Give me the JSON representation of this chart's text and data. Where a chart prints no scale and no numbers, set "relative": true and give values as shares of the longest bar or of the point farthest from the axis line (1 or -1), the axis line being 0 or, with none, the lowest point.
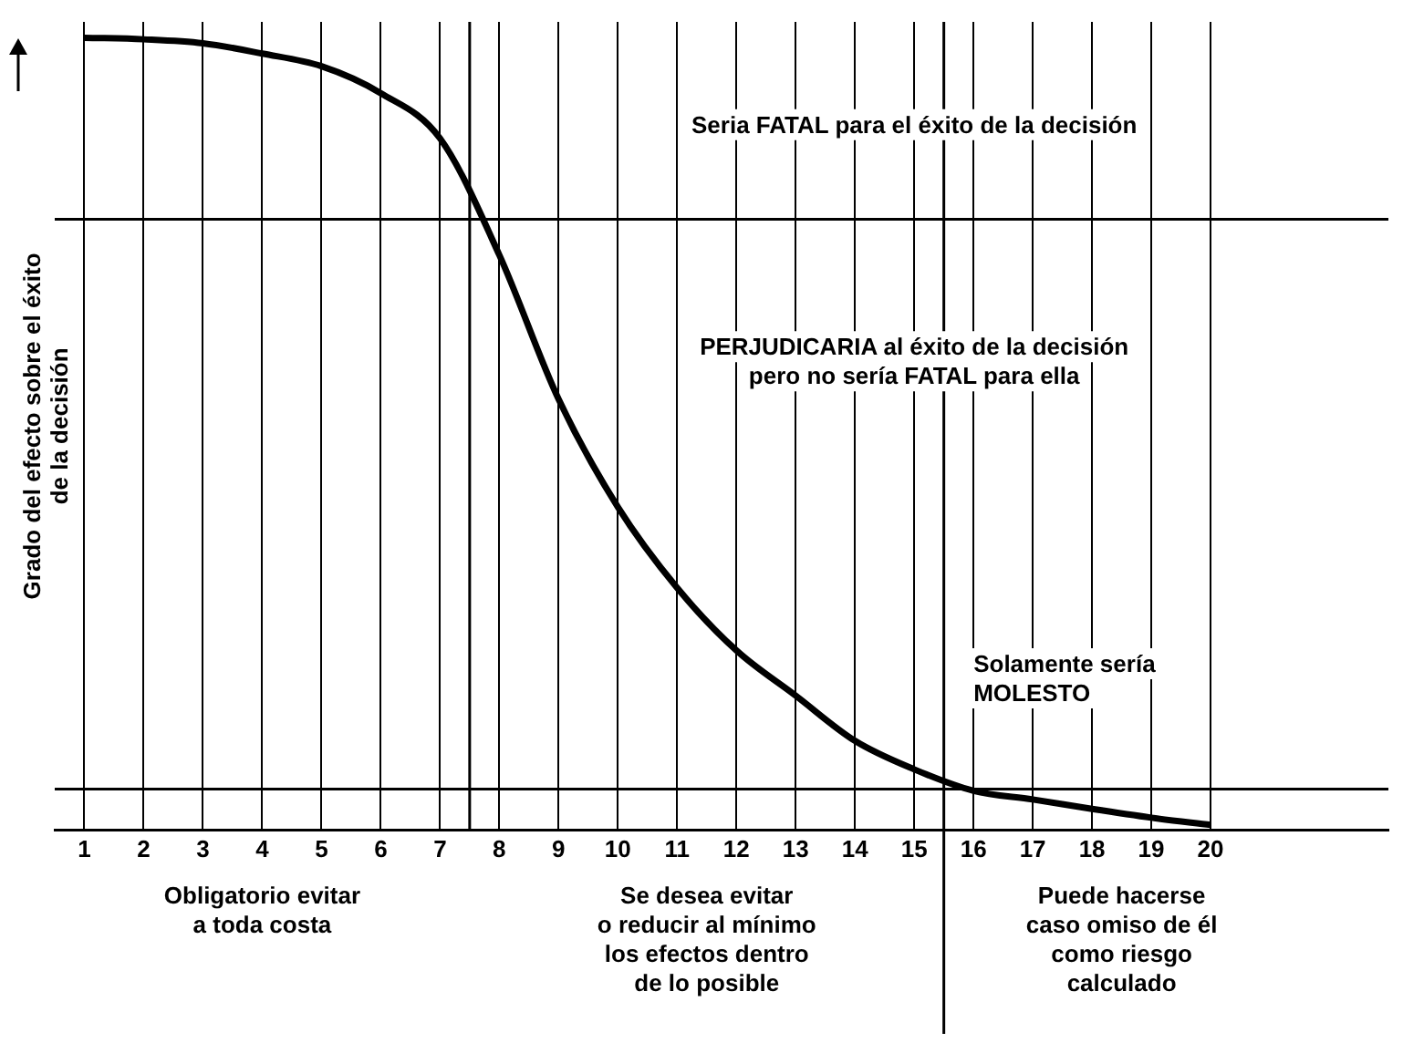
{
  "chart_data": {
    "type": "line",
    "relative": true,
    "ylabel": "Grado del efecto sobre el éxito\nde la decisión",
    "x": [
      1,
      2,
      3,
      4,
      5,
      6,
      7,
      8,
      9,
      10,
      11,
      12,
      13,
      14,
      15,
      16,
      17,
      18,
      19,
      20
    ],
    "xlim": [
      0.5,
      23
    ],
    "xticks": [
      1,
      2,
      3,
      4,
      5,
      6,
      7,
      8,
      9,
      10,
      11,
      12,
      13,
      14,
      15,
      16,
      17,
      18,
      19,
      20
    ],
    "series": [
      {
        "color": "#000000",
        "values": [
          1.0,
          0.998,
          0.993,
          0.98,
          0.964,
          0.93,
          0.873,
          0.726,
          0.544,
          0.408,
          0.306,
          0.227,
          0.17,
          0.113,
          0.077,
          0.05,
          0.039,
          0.027,
          0.016,
          0.007
        ]
      }
    ],
    "ref_lines": [
      {
        "axis": "y",
        "value": 0.771,
        "color": "#000000"
      },
      {
        "axis": "y",
        "value": 0.052,
        "color": "#000000"
      },
      {
        "axis": "x",
        "value": 7.5,
        "color": "#000000"
      },
      {
        "axis": "x",
        "value": 15.5,
        "color": "#000000"
      }
    ],
    "annotations": [
      "Seria FATAL para el éxito de la decisión",
      "PERJUDICARIA al éxito de la decisión\npero no sería FATAL para ella",
      "Solamente sería\nMOLESTO",
      "Obligatorio evitar\na toda costa",
      "Se desea evitar\no reducir al mínimo\nlos efectos dentro\nde lo posible",
      "Puede hacerse\ncaso omiso de él\ncomo riesgo\ncalculado"
    ],
    "grid": "x",
    "marker": "none",
    "line_style": "solid",
    "legend": false
  }
}
